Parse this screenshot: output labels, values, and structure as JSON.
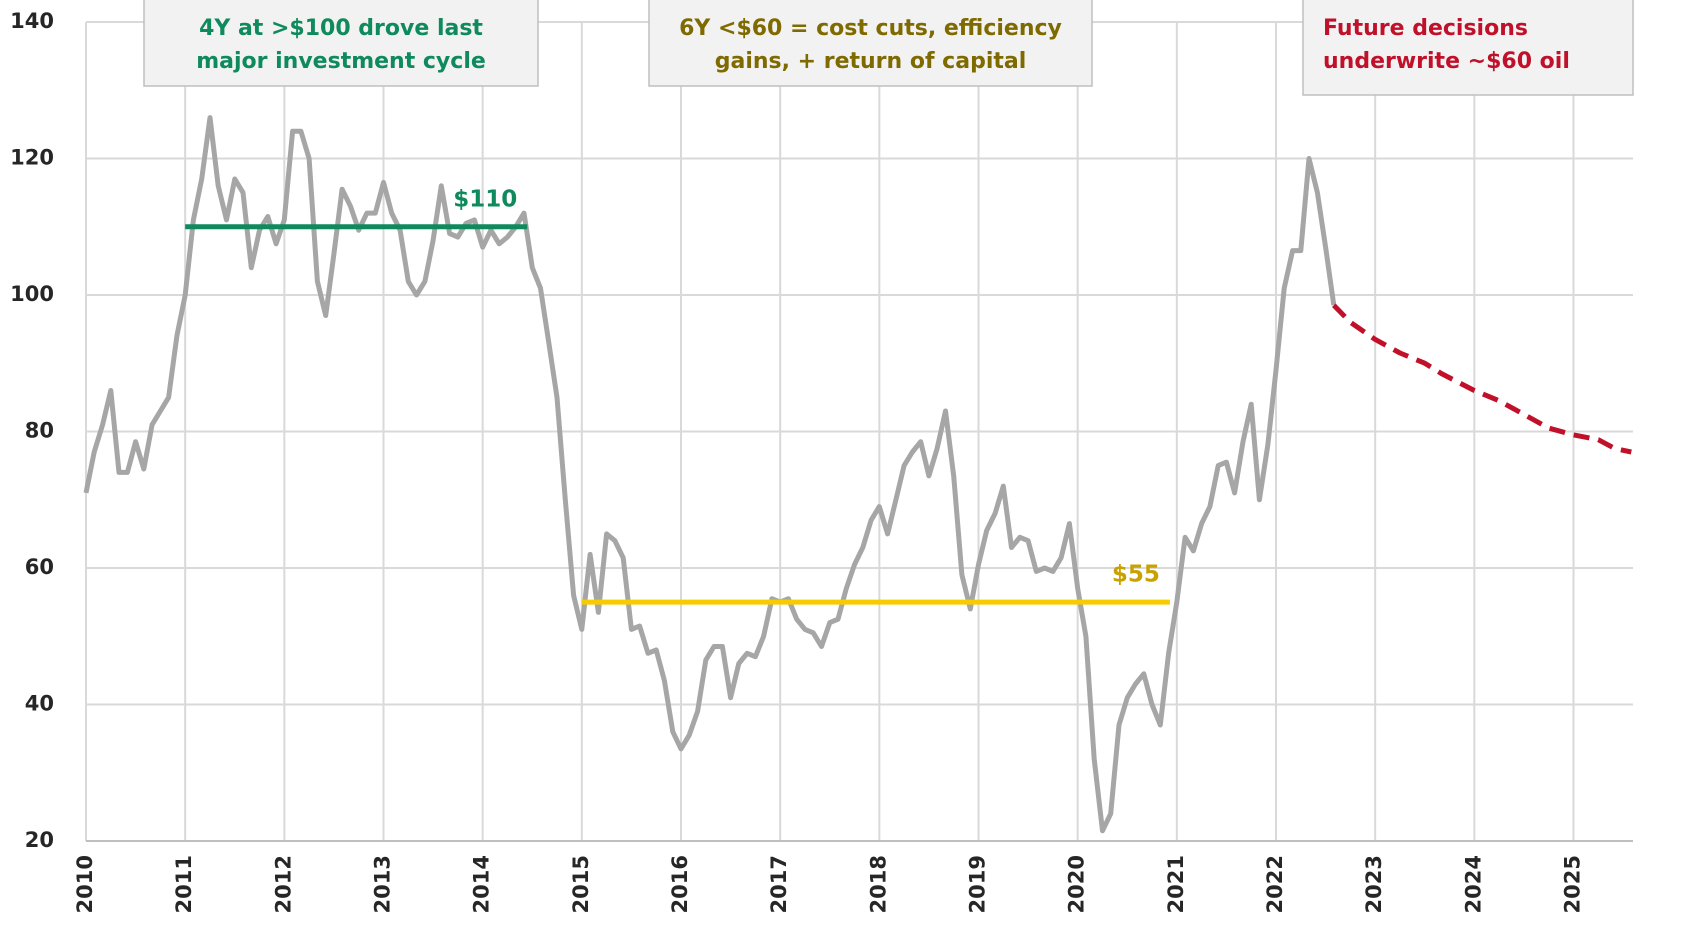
{
  "chart_data": {
    "type": "line",
    "xlim": [
      2010,
      2025.6
    ],
    "ylim": [
      20,
      140
    ],
    "xticks": [
      2010,
      2011,
      2012,
      2013,
      2014,
      2015,
      2016,
      2017,
      2018,
      2019,
      2020,
      2021,
      2022,
      2023,
      2024,
      2025
    ],
    "yticks": [
      20,
      40,
      60,
      80,
      100,
      120,
      140
    ],
    "grid": true,
    "series": [
      {
        "color": "#a6a6a6",
        "dashed": false,
        "x": [
          2010,
          2010.083,
          2010.167,
          2010.25,
          2010.333,
          2010.417,
          2010.5,
          2010.583,
          2010.667,
          2010.75,
          2010.833,
          2010.917,
          2011,
          2011.083,
          2011.167,
          2011.25,
          2011.333,
          2011.417,
          2011.5,
          2011.583,
          2011.667,
          2011.75,
          2011.833,
          2011.917,
          2012,
          2012.083,
          2012.167,
          2012.25,
          2012.333,
          2012.417,
          2012.5,
          2012.583,
          2012.667,
          2012.75,
          2012.833,
          2012.917,
          2013,
          2013.083,
          2013.167,
          2013.25,
          2013.333,
          2013.417,
          2013.5,
          2013.583,
          2013.667,
          2013.75,
          2013.833,
          2013.917,
          2014,
          2014.083,
          2014.167,
          2014.25,
          2014.333,
          2014.417,
          2014.5,
          2014.583,
          2014.667,
          2014.75,
          2014.833,
          2014.917,
          2015,
          2015.083,
          2015.167,
          2015.25,
          2015.333,
          2015.417,
          2015.5,
          2015.583,
          2015.667,
          2015.75,
          2015.833,
          2015.917,
          2016,
          2016.083,
          2016.167,
          2016.25,
          2016.333,
          2016.417,
          2016.5,
          2016.583,
          2016.667,
          2016.75,
          2016.833,
          2016.917,
          2017,
          2017.083,
          2017.167,
          2017.25,
          2017.333,
          2017.417,
          2017.5,
          2017.583,
          2017.667,
          2017.75,
          2017.833,
          2017.917,
          2018,
          2018.083,
          2018.167,
          2018.25,
          2018.333,
          2018.417,
          2018.5,
          2018.583,
          2018.667,
          2018.75,
          2018.833,
          2018.917,
          2019,
          2019.083,
          2019.167,
          2019.25,
          2019.333,
          2019.417,
          2019.5,
          2019.583,
          2019.667,
          2019.75,
          2019.833,
          2019.917,
          2020,
          2020.083,
          2020.167,
          2020.25,
          2020.333,
          2020.417,
          2020.5,
          2020.583,
          2020.667,
          2020.75,
          2020.833,
          2020.917,
          2021,
          2021.083,
          2021.167,
          2021.25,
          2021.333,
          2021.417,
          2021.5,
          2021.583,
          2021.667,
          2021.75,
          2021.833,
          2021.917,
          2022,
          2022.083,
          2022.167,
          2022.25,
          2022.333,
          2022.417,
          2022.5,
          2022.583
        ],
        "values": [
          71,
          77,
          81,
          86,
          74,
          74,
          78.5,
          74.5,
          81,
          83,
          85,
          94,
          100,
          111,
          117,
          126,
          116,
          111,
          117,
          115,
          104,
          109.5,
          111.5,
          107.5,
          111,
          124,
          124,
          120,
          102,
          97,
          106,
          115.5,
          113,
          109.5,
          112,
          112,
          116.5,
          112,
          109.5,
          102,
          100,
          102,
          108,
          116,
          109,
          108.5,
          110.5,
          111,
          107,
          109.5,
          107.5,
          108.5,
          110,
          112,
          104,
          101,
          93,
          85,
          70,
          56,
          51,
          62,
          53.5,
          65,
          64,
          61.5,
          51,
          51.5,
          47.5,
          48,
          43.5,
          36,
          33.5,
          35.5,
          39,
          46.5,
          48.5,
          48.5,
          41,
          46,
          47.5,
          47,
          50,
          55.5,
          55,
          55.5,
          52.5,
          51,
          50.5,
          48.5,
          52,
          52.5,
          57,
          60.5,
          63,
          67,
          69,
          65,
          70,
          75,
          77,
          78.5,
          73.5,
          77.5,
          83,
          73.5,
          59,
          54,
          60.5,
          65.5,
          68,
          72,
          63,
          64.5,
          64,
          59.5,
          60,
          59.5,
          61.5,
          66.5,
          57,
          50,
          32,
          21.5,
          24,
          37,
          41,
          43,
          44.5,
          40,
          37,
          47.5,
          55,
          64.5,
          62.5,
          66.5,
          69,
          75,
          75.5,
          71,
          78.5,
          84,
          70,
          78,
          89,
          101,
          106.5,
          106.5,
          120,
          115,
          107,
          98.5
        ]
      },
      {
        "color": "#c0102a",
        "dashed": true,
        "x": [
          2022.583,
          2022.75,
          2023,
          2023.25,
          2023.5,
          2023.667,
          2024,
          2024.25,
          2024.5,
          2024.75,
          2025,
          2025.25,
          2025.417,
          2025.583
        ],
        "values": [
          98.5,
          96,
          93.5,
          91.5,
          90,
          88.5,
          86,
          84.5,
          82.5,
          80.5,
          79.5,
          78.8,
          77.5,
          77
        ]
      }
    ],
    "reference_lines": [
      {
        "label": "$110",
        "value": 110,
        "x_start": 2011,
        "x_end": 2014.45,
        "color": "#0e8a5c",
        "label_color": "#0e8a5c"
      },
      {
        "label": "$55",
        "value": 55,
        "x_start": 2015,
        "x_end": 2020.93,
        "color": "#f7cb00",
        "label_color": "#c9a100"
      }
    ],
    "annotations": [
      {
        "lines": [
          "4Y at >$100 drove last",
          "major investment  cycle"
        ],
        "color": "#0e8a5c"
      },
      {
        "lines": [
          "6Y <$60 = cost cuts,  efficiency",
          "gains, + return  of capital"
        ],
        "color": "#7f6a00"
      },
      {
        "lines": [
          "Future  decisions",
          "underwrite  ~$60 oil"
        ],
        "color": "#c0102a"
      }
    ]
  }
}
